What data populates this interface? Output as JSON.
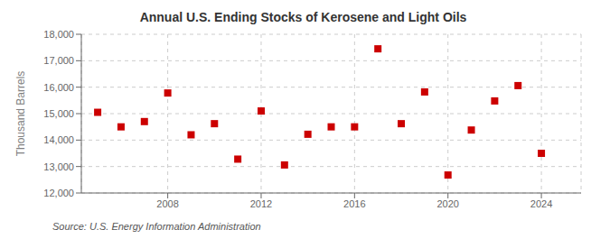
{
  "chart_data": {
    "type": "scatter",
    "title": "Annual U.S. Ending Stocks of Kerosene and Light Oils",
    "y_label": "Thousand Barrels",
    "annotation": "Source: U.S. Energy Information Administration",
    "x": [
      2005,
      2006,
      2007,
      2008,
      2009,
      2010,
      2011,
      2012,
      2013,
      2014,
      2015,
      2016,
      2017,
      2018,
      2019,
      2020,
      2021,
      2022,
      2023,
      2024
    ],
    "values": [
      15050,
      14500,
      14700,
      15780,
      14200,
      14620,
      13280,
      15100,
      13060,
      14220,
      14500,
      14500,
      17450,
      14620,
      15820,
      12680,
      14380,
      15480,
      16060,
      13500
    ],
    "color": "#cc0000",
    "marker": "square",
    "grid": true,
    "xlim": [
      2004.3,
      2025.7
    ],
    "xticks": [
      2008,
      2012,
      2016,
      2020,
      2024
    ],
    "ylim": [
      12000,
      18000
    ],
    "yticks": [
      {
        "value": 12000,
        "label": "12,000"
      },
      {
        "value": 13000,
        "label": "13,000"
      },
      {
        "value": 14000,
        "label": "14,000"
      },
      {
        "value": 15000,
        "label": "15,000"
      },
      {
        "value": 16000,
        "label": "16,000"
      },
      {
        "value": 17000,
        "label": "17,000"
      },
      {
        "value": 18000,
        "label": "18,000"
      }
    ]
  }
}
